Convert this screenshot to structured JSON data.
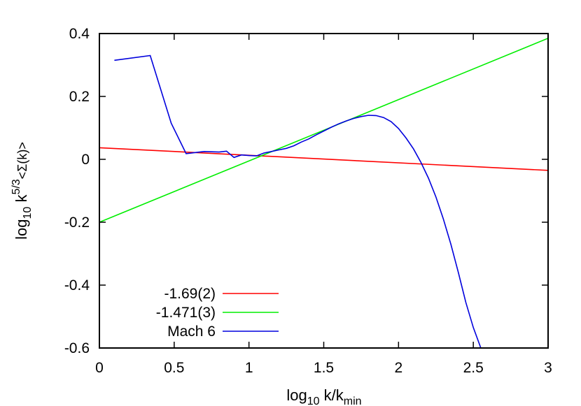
{
  "chart_data": {
    "type": "line",
    "xlabel": {
      "base": "log",
      "sub1": "10",
      "mid": " k/k",
      "sub2": "min"
    },
    "ylabel": {
      "base": "log",
      "sub1": "10",
      "mid": " k",
      "sup": "5/3",
      "tail": "<Σ(k)>"
    },
    "xlim": [
      0,
      3
    ],
    "ylim": [
      -0.6,
      0.4
    ],
    "xticks": [
      0,
      0.5,
      1,
      1.5,
      2,
      2.5,
      3
    ],
    "xtick_labels": [
      "0",
      "0.5",
      "1",
      "1.5",
      "2",
      "2.5",
      "3"
    ],
    "yticks": [
      -0.6,
      -0.4,
      -0.2,
      0,
      0.2,
      0.4
    ],
    "ytick_labels": [
      "-0.6",
      "-0.4",
      "-0.2",
      "0",
      "0.2",
      "0.4"
    ],
    "grid": false,
    "legend_position": "bottom-left",
    "series": [
      {
        "name": "-1.69(2)",
        "color": "#ff0000",
        "x": [
          0,
          3
        ],
        "y": [
          0.037,
          -0.035
        ]
      },
      {
        "name": "-1.471(3)",
        "color": "#00ee00",
        "x": [
          0,
          3
        ],
        "y": [
          -0.2,
          0.385
        ]
      },
      {
        "name": "Mach 6",
        "color": "#0000dd",
        "x": [
          0.1,
          0.34,
          0.48,
          0.58,
          0.65,
          0.7,
          0.75,
          0.8,
          0.85,
          0.9,
          0.95,
          1.0,
          1.05,
          1.1,
          1.15,
          1.2,
          1.25,
          1.3,
          1.35,
          1.4,
          1.45,
          1.5,
          1.55,
          1.6,
          1.65,
          1.7,
          1.75,
          1.8,
          1.85,
          1.9,
          1.95,
          2.0,
          2.05,
          2.1,
          2.15,
          2.2,
          2.25,
          2.3,
          2.35,
          2.4,
          2.45,
          2.5,
          2.55
        ],
        "y": [
          0.315,
          0.33,
          0.115,
          0.018,
          0.022,
          0.025,
          0.024,
          0.023,
          0.026,
          0.006,
          0.014,
          0.012,
          0.011,
          0.02,
          0.025,
          0.03,
          0.035,
          0.043,
          0.055,
          0.065,
          0.078,
          0.09,
          0.102,
          0.113,
          0.122,
          0.13,
          0.136,
          0.14,
          0.139,
          0.133,
          0.12,
          0.098,
          0.068,
          0.033,
          -0.01,
          -0.06,
          -0.12,
          -0.19,
          -0.27,
          -0.36,
          -0.455,
          -0.535,
          -0.6
        ]
      }
    ]
  }
}
